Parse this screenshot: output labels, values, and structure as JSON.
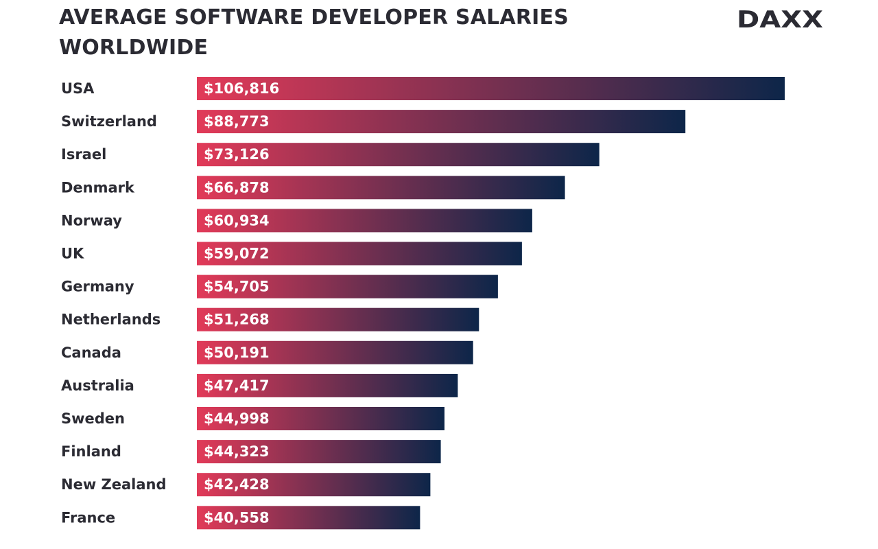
{
  "header": {
    "title": "AVERAGE SOFTWARE DEVELOPER SALARIES\nWORLDWIDE",
    "logo": "DAXX"
  },
  "colors": {
    "bar_start": "#e23a58",
    "bar_end": "#0d2649",
    "text": "#2b2b33",
    "logo_accent": "#f2b632"
  },
  "chart_data": {
    "type": "bar",
    "orientation": "horizontal",
    "categories": [
      "USA",
      "Switzerland",
      "Israel",
      "Denmark",
      "Norway",
      "UK",
      "Germany",
      "Netherlands",
      "Canada",
      "Australia",
      "Sweden",
      "Finland",
      "New Zealand",
      "France"
    ],
    "values": [
      106816,
      88773,
      73126,
      66878,
      60934,
      59072,
      54705,
      51268,
      50191,
      47417,
      44998,
      44323,
      42428,
      40558
    ],
    "value_labels": [
      "$106,816",
      "$88,773",
      "$73,126",
      "$66,878",
      "$60,934",
      "$59,072",
      "$54,705",
      "$51,268",
      "$50,191",
      "$47,417",
      "$44,998",
      "$44,323",
      "$42,428",
      "$40,558"
    ],
    "title": "AVERAGE SOFTWARE DEVELOPER SALARIES WORLDWIDE",
    "xlabel": "",
    "ylabel": "",
    "xlim": [
      0,
      106816
    ],
    "grid": false,
    "legend": "none"
  }
}
